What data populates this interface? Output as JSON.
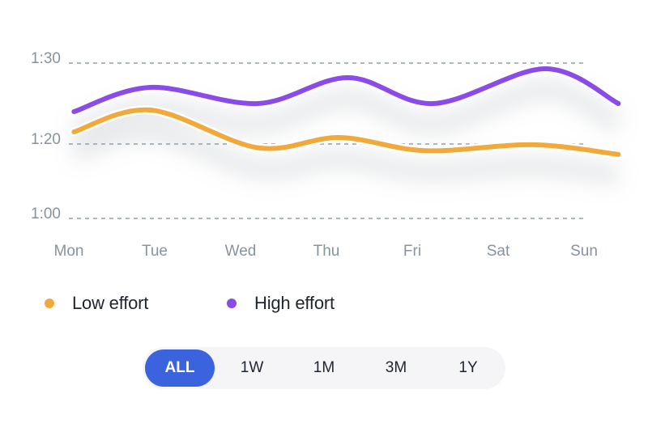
{
  "chart_data": {
    "type": "line",
    "categories": [
      "Mon",
      "Tue",
      "Wed",
      "Thu",
      "Fri",
      "Sat",
      "Sun"
    ],
    "x_positions": [
      0,
      1,
      2,
      3,
      4,
      5,
      6
    ],
    "y_ticks": [
      {
        "label": "1:30",
        "value": 90
      },
      {
        "label": "1:20",
        "value": 80
      },
      {
        "label": "1:00",
        "value": 60
      }
    ],
    "series": [
      {
        "name": "Low effort",
        "color": "#f2a93b",
        "points": [
          [
            0.06,
            81.5
          ],
          [
            0.95,
            84.2
          ],
          [
            2.2,
            79.0
          ],
          [
            3.15,
            80.8
          ],
          [
            4.15,
            78.2
          ],
          [
            5.4,
            79.8
          ],
          [
            6.4,
            77.2
          ]
        ]
      },
      {
        "name": "High effort",
        "color": "#8a4be8",
        "points": [
          [
            0.06,
            84.0
          ],
          [
            0.95,
            87.0
          ],
          [
            2.2,
            85.0
          ],
          [
            3.25,
            88.2
          ],
          [
            4.25,
            85.0
          ],
          [
            5.55,
            89.3
          ],
          [
            6.4,
            85.0
          ]
        ]
      }
    ],
    "grid": true,
    "legend_position": "bottom-left"
  },
  "legend": [
    {
      "label": "Low effort",
      "color": "#f2a93b"
    },
    {
      "label": "High effort",
      "color": "#8a4be8"
    }
  ],
  "range_selector": {
    "options": [
      "ALL",
      "1W",
      "1M",
      "3M",
      "1Y"
    ],
    "selected": "ALL"
  }
}
